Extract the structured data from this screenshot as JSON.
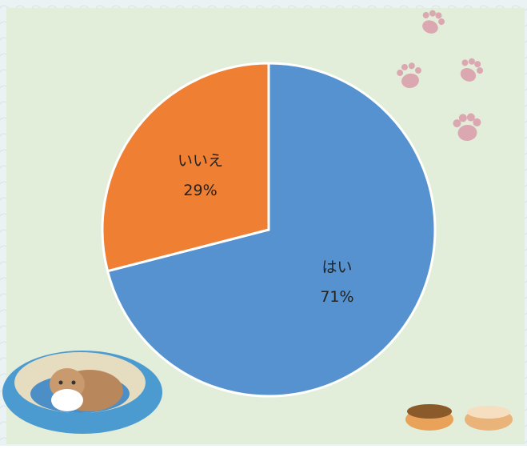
{
  "chart_data": {
    "type": "pie",
    "categories": [
      "はい",
      "いいえ"
    ],
    "values": [
      71,
      29
    ],
    "value_labels": [
      "71%",
      "29%"
    ],
    "colors": [
      "#5592cf",
      "#ef7f33"
    ],
    "start_angle": 0,
    "direction": "clockwise"
  }
}
